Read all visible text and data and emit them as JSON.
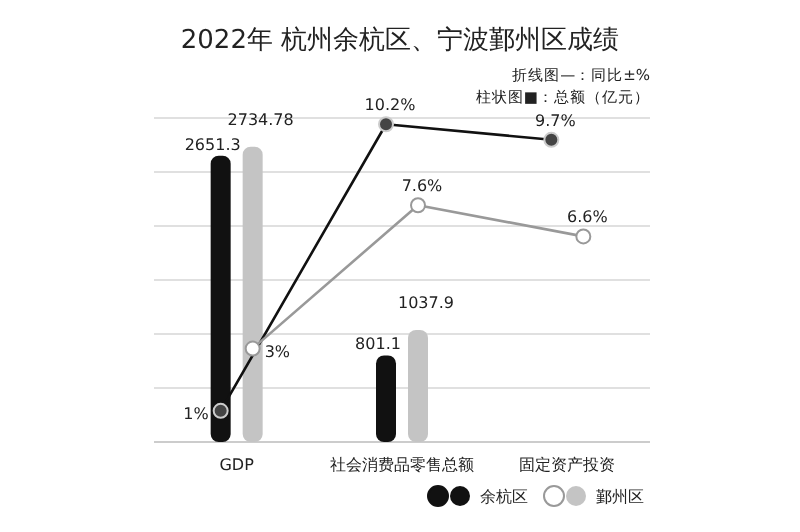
{
  "chart_data": {
    "type": "bar",
    "title": "2022年 杭州余杭区、宁波鄞州区成绩",
    "annotations": [
      "折线图—：同比±%",
      "柱状图■：总额（亿元）"
    ],
    "categories": [
      "GDP",
      "社会消费品零售总额",
      "固定资产投资"
    ],
    "series": [
      {
        "name": "余杭区",
        "color": "#111111",
        "values": [
          2651.3,
          801.1,
          null
        ],
        "value_labels": [
          "2651.3",
          "801.1",
          null
        ]
      },
      {
        "name": "鄞州区",
        "color": "#c4c4c4",
        "values": [
          2734.78,
          1037.9,
          null
        ],
        "value_labels": [
          "2734.78",
          "1037.9",
          null
        ]
      },
      {
        "type": "line",
        "axis": "y2",
        "color": "#111111",
        "values": [
          1,
          10.2,
          9.7
        ],
        "value_labels": [
          "1%",
          "10.2%",
          "9.7%"
        ]
      },
      {
        "type": "line",
        "axis": "y2",
        "color": "#999999",
        "values": [
          3,
          7.6,
          6.6
        ],
        "value_labels": [
          "3%",
          "7.6%",
          "6.6%"
        ]
      }
    ],
    "ylim": [
      0,
      3000
    ],
    "yticks": [
      {
        "value": 0,
        "label": null
      },
      {
        "value": 500,
        "label": null
      },
      {
        "value": 1000,
        "label": null
      },
      {
        "value": 1500,
        "label": null
      },
      {
        "value": 2000,
        "label": null
      },
      {
        "value": 2500,
        "label": null
      },
      {
        "value": 3000,
        "label": null
      }
    ],
    "y2lim": [
      0,
      10.4
    ],
    "grid": "y",
    "marker": "circle",
    "legend": "bottom right"
  }
}
